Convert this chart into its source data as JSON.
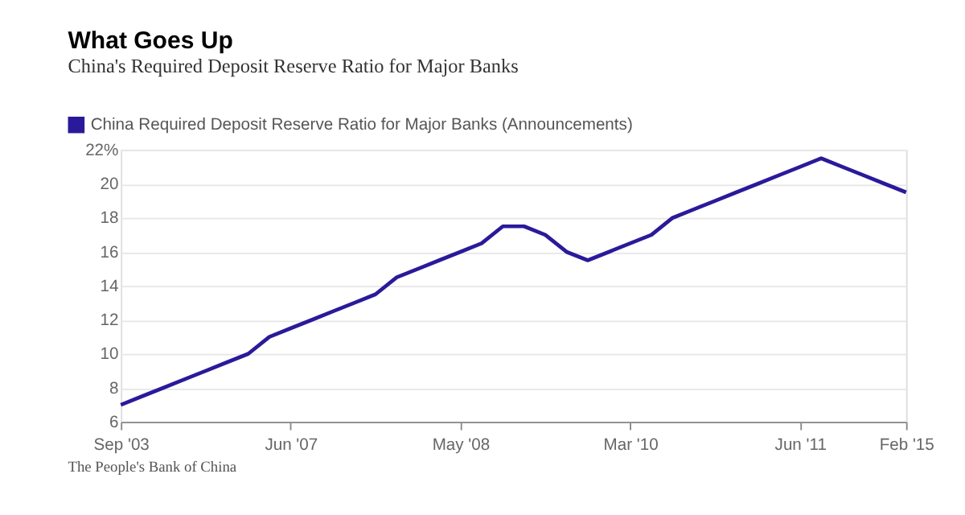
{
  "chart_data": {
    "type": "line",
    "title": "What Goes Up",
    "subtitle": "China's Required Deposit Reserve Ratio for Major Banks",
    "categories": [
      "Sep '03",
      null,
      null,
      null,
      null,
      null,
      null,
      null,
      "Jun '07",
      null,
      null,
      null,
      null,
      null,
      null,
      null,
      "May '08",
      null,
      null,
      null,
      null,
      null,
      null,
      null,
      "Mar '10",
      null,
      null,
      null,
      null,
      null,
      null,
      null,
      "Jun '11",
      null,
      null,
      null,
      null,
      "Feb '15"
    ],
    "series": [
      {
        "name": "China Required Deposit Reserve Ratio for Major Banks (Announcements)",
        "color": "#2a1a9a",
        "values": [
          7,
          7.5,
          8,
          8.5,
          9,
          9.5,
          10,
          11,
          11.5,
          12,
          12.5,
          13,
          13.5,
          14.5,
          15,
          15.5,
          16,
          16.5,
          17.5,
          17.5,
          17,
          16,
          15.5,
          16,
          16.5,
          17,
          18,
          18.5,
          19,
          19.5,
          20,
          20.5,
          21,
          21.5,
          21,
          20.5,
          20,
          19.5
        ]
      }
    ],
    "ylim": [
      6,
      22
    ],
    "yticks": [
      6,
      8,
      10,
      12,
      14,
      16,
      18,
      20,
      {
        "value": 22,
        "label": "22%"
      }
    ],
    "grid": "y",
    "legend": "top left",
    "line_style": "solid",
    "marker": "none",
    "annotations": [
      "The People's Bank of China"
    ]
  }
}
